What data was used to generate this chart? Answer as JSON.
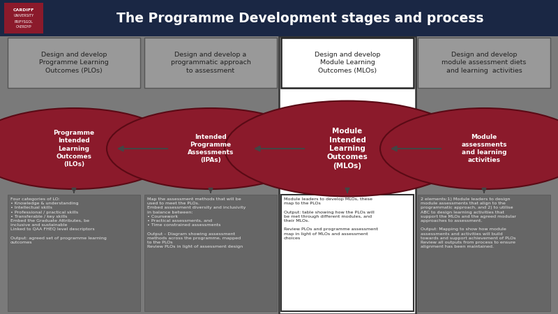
{
  "title": "The Programme Development stages and process",
  "title_color": "#FFFFFF",
  "header_bg": "#1a2744",
  "main_bg": "#7a7a7a",
  "highlight_bg": "#FFFFFF",
  "ellipse_color": "#8B1A2B",
  "ellipse_edge": "#5a0a15",
  "arrow_color": "#444444",
  "box_bg": "#999999",
  "box_border": "#444444",
  "text_bg": "#666666",
  "text_color_dark": "#222222",
  "text_color_light": "#e8e8e8",
  "columns": [
    {
      "header": "Design and develop\nProgramme Learning\nOutcomes (PLOs)",
      "ellipse_text": "Programme\nIntended\nLearning\nOutcomes\n(ILOs)",
      "bottom_text": "Four categories of LO:\n• Knowledge & understanding\n• Intellectual skills\n• Professional / practical skills\n• Transferable / key skills\nEmbed the Graduate Attributes, be\ninclusive and sustainable\nLinked to QAA FHEQ level descriptors\n\nOutput: agreed set of programme learning\noutcomes",
      "highlighted": false
    },
    {
      "header": "Design and develop a\nprogrammatic approach\nto assessment",
      "ellipse_text": "Intended\nProgramme\nAssessments\n(IPAs)",
      "bottom_text": "Map the assessment methods that will be\nused to meet the PLOs.\nEmbed assessment diversity and inclusivity\nin balance between:\n• Coursework\n• Practical assessments, and\n• Time constrained assessments\n\nOutput – Diagram showing assessment\nmethods across the programme, mapped\nto the PLOs\nReview PLOs in light of assessment design",
      "highlighted": false
    },
    {
      "header": "Design and develop\nModule Learning\nOutcomes (MLOs)",
      "ellipse_text": "Module\nIntended\nLearning\nOutcomes\n(MLOs)",
      "bottom_text": "Module leaders to develop MLOs, these\nmap to the PLOs\n\nOutput: table showing how the PLOs will\nbe met through different modules, and\ntheir MLOs.\n\nReview PLOs and programme assessment\nmap in light of MLOs and assessment\nchoices",
      "highlighted": true
    },
    {
      "header": "Design and develop\nmodule assessment diets\nand learning  activities",
      "ellipse_text": "Module\nassessments\nand learning\nactivities",
      "bottom_text": "2 elements:1) Module leaders to design\nmodule assessments that align to the\nprogrammatic approach, and 2) to utilise\nABC to design learning activities that\nsupport the MLOs and the agreed modular\napproaches to assessment.\n\nOutput: Mapping to show how module\nassessments and activities will build\ntowards and support achievement of PLOs\nReview all outputs from process to ensure\nalignment has been maintained.",
      "highlighted": false
    }
  ]
}
